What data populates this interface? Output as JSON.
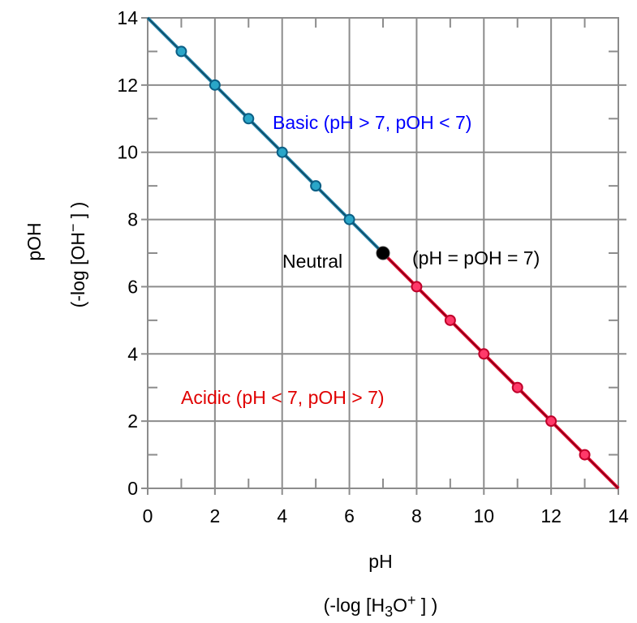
{
  "chart_data": {
    "type": "line",
    "x": [
      0,
      1,
      2,
      3,
      4,
      5,
      6,
      7,
      8,
      9,
      10,
      11,
      12,
      13,
      14
    ],
    "series": [
      {
        "x": [
          0,
          1,
          2,
          3,
          4,
          5,
          6,
          7
        ],
        "values": [
          14,
          13,
          12,
          11,
          10,
          9,
          8,
          7
        ],
        "color": "#1f7fa8"
      },
      {
        "x": [
          7,
          8,
          9,
          10,
          11,
          12,
          13,
          14
        ],
        "values": [
          7,
          6,
          5,
          4,
          3,
          2,
          1,
          0
        ],
        "color": "#e0002a"
      }
    ],
    "neutral_point": {
      "x": 7,
      "y": 7,
      "color": "#000000"
    },
    "xlabel": "pH",
    "xlabel_sub": "(-log [H3O+] )",
    "ylabel": "pOH",
    "ylabel_sub": "(-log [OH-] )",
    "xlim": [
      0,
      14
    ],
    "ylim": [
      0,
      14
    ],
    "xticks": [
      "0",
      "2",
      "4",
      "6",
      "8",
      "10",
      "12",
      "14"
    ],
    "yticks": [
      "0",
      "2",
      "4",
      "6",
      "8",
      "10",
      "12",
      "14"
    ],
    "grid": true,
    "annotations": {
      "basic": "Basic (pH > 7, pOH < 7)",
      "neutral": "Neutral",
      "neutral_eq": "(pH = pOH = 7)",
      "acidic": "Acidic (pH < 7, pOH > 7)"
    },
    "colors": {
      "basic": "#0000ff",
      "acidic": "#e00000",
      "neutral": "#000000"
    }
  }
}
